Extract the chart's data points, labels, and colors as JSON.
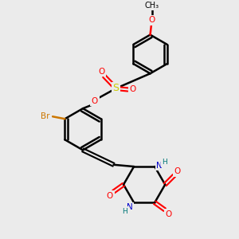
{
  "bg_color": "#ebebeb",
  "atom_colors": {
    "C": "#000000",
    "O": "#ff0000",
    "N": "#0000cc",
    "S": "#cccc00",
    "Br": "#cc7700",
    "H": "#007777"
  },
  "bond_color": "#000000",
  "bond_width": 1.8,
  "figsize": [
    3.0,
    3.0
  ],
  "dpi": 100
}
